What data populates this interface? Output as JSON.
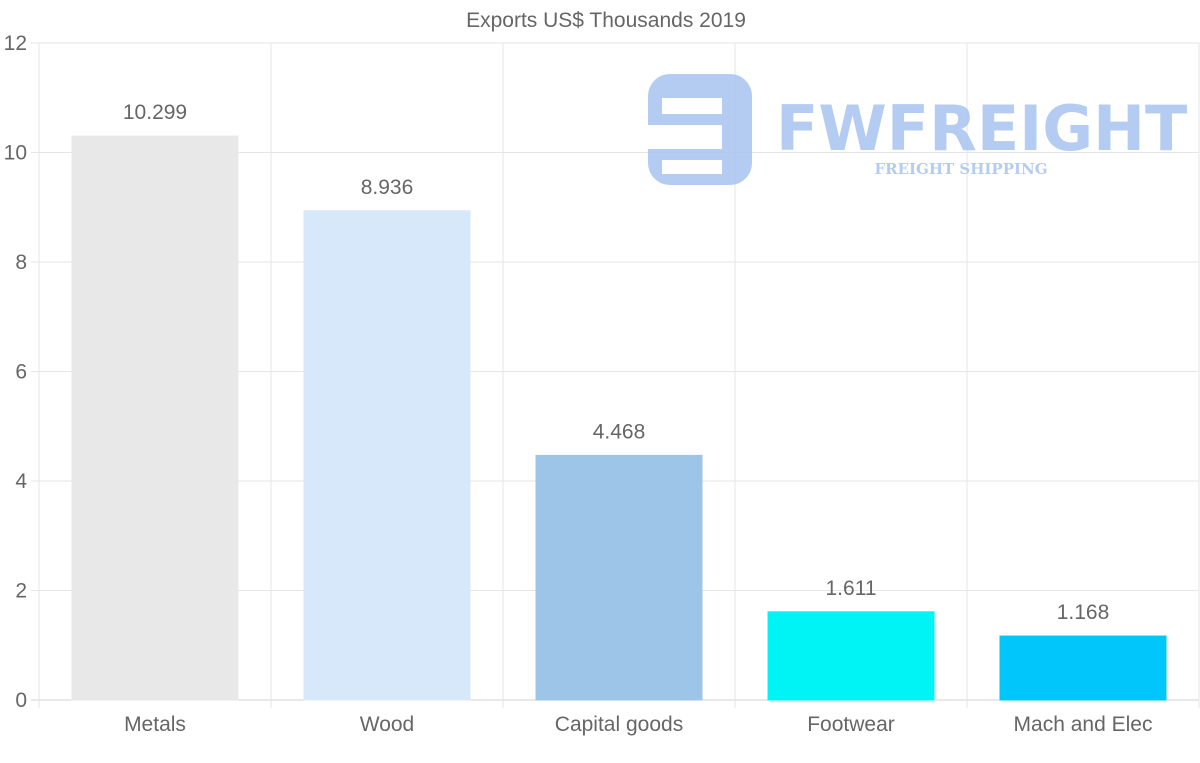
{
  "chart_data": {
    "type": "bar",
    "title": "Exports US$ Thousands 2019",
    "categories": [
      "Metals",
      "Wood",
      "Capital goods",
      "Footwear",
      "Mach and Elec"
    ],
    "values": [
      10.299,
      8.936,
      4.468,
      1.611,
      1.168
    ],
    "value_labels": [
      "10.299",
      "8.936",
      "4.468",
      "1.611",
      "1.168"
    ],
    "colors": [
      "#e8e8e8",
      "#d6e8f9",
      "#9cc5e8",
      "#00f4f6",
      "#00c6fb"
    ],
    "y_ticks": [
      "0",
      "2",
      "4",
      "6",
      "8",
      "10",
      "12"
    ],
    "ylim": [
      0,
      12
    ],
    "xlabel": "",
    "ylabel": "",
    "grid": true,
    "legend": "none"
  },
  "watermark": {
    "brand": "FWFREIGHT",
    "tagline": "FREIGHT SHIPPING",
    "color": "#a8c4f0"
  }
}
